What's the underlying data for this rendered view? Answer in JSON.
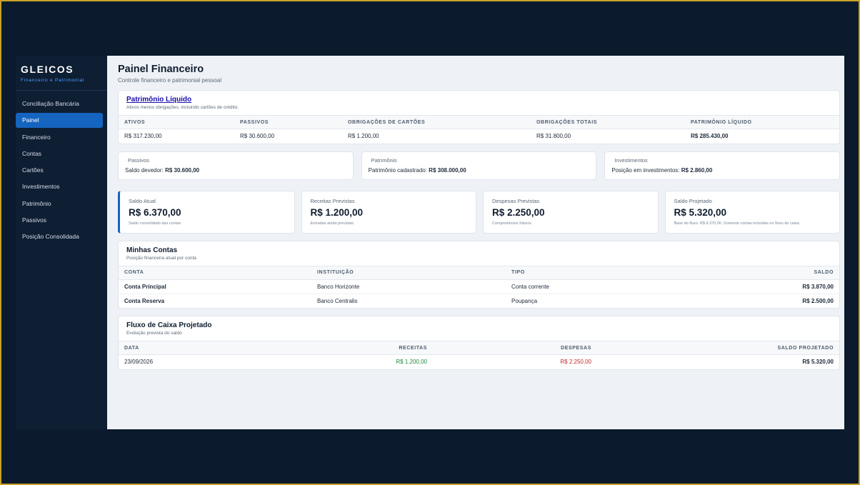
{
  "brand": {
    "title": "GLEICOS",
    "subtitle": "Financeiro e Patrimonial"
  },
  "sidebar": {
    "items": [
      {
        "label": "Conciliação Bancária",
        "active": false
      },
      {
        "label": "Painel",
        "active": true
      },
      {
        "label": "Financeiro",
        "active": false
      },
      {
        "label": "Contas",
        "active": false
      },
      {
        "label": "Cartões",
        "active": false
      },
      {
        "label": "Investimentos",
        "active": false
      },
      {
        "label": "Patrimônio",
        "active": false
      },
      {
        "label": "Passivos",
        "active": false
      },
      {
        "label": "Posição Consolidada",
        "active": false
      }
    ]
  },
  "page": {
    "title": "Painel Financeiro",
    "subtitle": "Controle financeiro e patrimonial pessoal"
  },
  "net_worth": {
    "title": "Patrimônio Líquido",
    "description": "Ativos menos obrigações, incluindo cartões de crédito.",
    "headers": [
      "Ativos",
      "Passivos",
      "Obrigações de Cartões",
      "Obrigações Totais",
      "Patrimônio Líquido"
    ],
    "values": [
      "R$ 317.230,00",
      "R$ 30.600,00",
      "R$ 1.200,00",
      "R$ 31.800,00",
      "R$ 285.430,00"
    ]
  },
  "summary": [
    {
      "label": "Passivos",
      "text": "Saldo devedor:",
      "value": "R$ 30.600,00"
    },
    {
      "label": "Patrimônio",
      "text": "Patrimônio cadastrado:",
      "value": "R$ 308.000,00"
    },
    {
      "label": "Investimentos",
      "text": "Posição em investimentos:",
      "value": "R$ 2.860,00"
    }
  ],
  "stats": [
    {
      "label": "Saldo Atual",
      "value": "R$ 6.370,00",
      "note": "Saldo consolidado das contas",
      "color": "#0f1c2e"
    },
    {
      "label": "Receitas Previstas",
      "value": "R$ 1.200,00",
      "note": "Entradas ainda previstas",
      "color": "#1e8a3a"
    },
    {
      "label": "Despesas Previstas",
      "value": "R$ 2.250,00",
      "note": "Compromissos futuros",
      "color": "#c62828"
    },
    {
      "label": "Saldo Projetado",
      "value": "R$ 5.320,00",
      "note": "Base do fluxo: R$ 6.370,00. Somente contas incluídas no fluxo de caixa.",
      "color": "#0f1c2e"
    }
  ],
  "accounts": {
    "title": "Minhas Contas",
    "description": "Posição financeira atual por conta",
    "headers": [
      "Conta",
      "Instituição",
      "Tipo",
      "Saldo"
    ],
    "rows": [
      {
        "name": "Conta Principal",
        "institution": "Banco Horizonte",
        "type": "Conta corrente",
        "balance": "R$ 3.870,00"
      },
      {
        "name": "Conta Reserva",
        "institution": "Banco Centralis",
        "type": "Poupança",
        "balance": "R$ 2.500,00"
      }
    ]
  },
  "cashflow": {
    "title": "Fluxo de Caixa Projetado",
    "description": "Evolução prevista do saldo",
    "headers": [
      "Data",
      "Receitas",
      "Despesas",
      "Saldo Projetado"
    ],
    "rows": [
      {
        "date": "23/09/2026",
        "income": "R$ 1.200,00",
        "expenses": "R$ 2.250,00",
        "balance": "R$ 5.320,00"
      }
    ]
  },
  "colors": {
    "accent": "#1565c0",
    "sidebar": "#0e1e33",
    "positive": "#1e8a3a",
    "negative": "#c62828",
    "frame": "#c9a227"
  }
}
